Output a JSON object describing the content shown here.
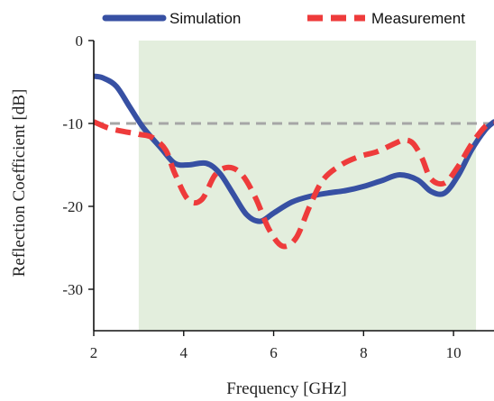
{
  "chart_data": {
    "type": "line",
    "xlabel": "Frequency [GHz]",
    "ylabel": "Reflection Coefficient [dB]",
    "xlim": [
      2,
      10.9
    ],
    "ylim": [
      -35,
      0
    ],
    "x_ticks": [
      2,
      4,
      6,
      8,
      10
    ],
    "y_ticks": [
      0,
      -10,
      -20,
      -30
    ],
    "x_tick_labels": [
      "2",
      "4",
      "6",
      "8",
      "10"
    ],
    "y_tick_labels": [
      "0",
      "-10",
      "-20",
      "-30"
    ],
    "shaded_band": {
      "x_start": 3.0,
      "x_end": 10.5,
      "color": "#e3eedd"
    },
    "reference_line": {
      "y": -10,
      "color": "#a6a6a6",
      "style": "dashed"
    },
    "legend_position": "top",
    "series": [
      {
        "name": "Simulation",
        "color": "#3750a3",
        "style": "solid",
        "x": [
          2.0,
          2.2,
          2.5,
          2.8,
          3.1,
          3.5,
          3.8,
          4.1,
          4.5,
          4.8,
          5.1,
          5.4,
          5.7,
          6.0,
          6.4,
          6.8,
          7.2,
          7.6,
          8.0,
          8.4,
          8.8,
          9.2,
          9.5,
          9.8,
          10.1,
          10.4,
          10.7,
          10.9
        ],
        "y": [
          -4.3,
          -4.5,
          -5.5,
          -8.0,
          -10.5,
          -13.0,
          -14.8,
          -15.0,
          -14.8,
          -16.0,
          -18.5,
          -21.0,
          -21.8,
          -20.8,
          -19.5,
          -18.8,
          -18.4,
          -18.1,
          -17.6,
          -16.9,
          -16.2,
          -16.8,
          -18.2,
          -18.4,
          -16.3,
          -13.2,
          -10.8,
          -9.8
        ]
      },
      {
        "name": "Measurement",
        "color": "#ee3b3b",
        "style": "dashed",
        "x": [
          2.0,
          2.3,
          2.6,
          3.0,
          3.3,
          3.6,
          3.8,
          4.1,
          4.4,
          4.7,
          5.0,
          5.3,
          5.6,
          5.9,
          6.2,
          6.5,
          6.8,
          7.1,
          7.5,
          7.9,
          8.3,
          8.7,
          8.9,
          9.1,
          9.3,
          9.5,
          9.8,
          10.1,
          10.4,
          10.7,
          10.9
        ],
        "y": [
          -9.8,
          -10.5,
          -10.9,
          -11.3,
          -11.7,
          -13.2,
          -16.0,
          -19.2,
          -19.2,
          -16.2,
          -15.3,
          -16.2,
          -19.0,
          -22.8,
          -24.8,
          -23.8,
          -20.0,
          -16.8,
          -15.0,
          -14.0,
          -13.4,
          -12.4,
          -12.0,
          -12.4,
          -14.2,
          -16.7,
          -17.2,
          -15.2,
          -12.5,
          -10.4,
          -9.9
        ]
      }
    ]
  }
}
